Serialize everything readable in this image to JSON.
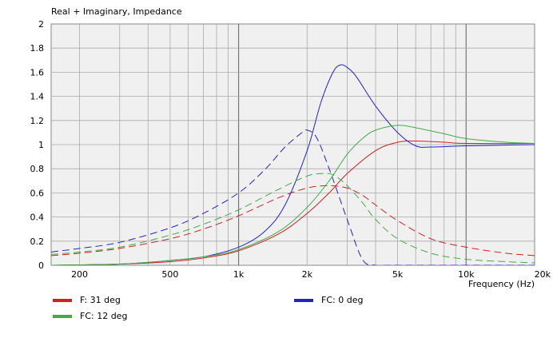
{
  "chart_data": {
    "type": "line",
    "title": "Real + Imaginary, Impedance",
    "xlabel": "Frequency  (Hz)",
    "ylabel": "",
    "xscale": "log",
    "xlim": [
      150,
      20000
    ],
    "ylim": [
      0,
      2
    ],
    "grid": true,
    "x_ticks": [
      {
        "value": 200,
        "label": "200"
      },
      {
        "value": 500,
        "label": "500"
      },
      {
        "value": 1000,
        "label": "1k"
      },
      {
        "value": 2000,
        "label": "2k"
      },
      {
        "value": 5000,
        "label": "5k"
      },
      {
        "value": 10000,
        "label": "10k"
      },
      {
        "value": 20000,
        "label": "20k"
      }
    ],
    "y_ticks": [
      {
        "value": 0,
        "label": "0"
      },
      {
        "value": 0.2,
        "label": "0.2"
      },
      {
        "value": 0.4,
        "label": "0.4"
      },
      {
        "value": 0.6,
        "label": "0.6"
      },
      {
        "value": 0.8,
        "label": "0.8"
      },
      {
        "value": 1,
        "label": "1"
      },
      {
        "value": 1.2,
        "label": "1.2"
      },
      {
        "value": 1.4,
        "label": "1.4"
      },
      {
        "value": 1.6,
        "label": "1.6"
      },
      {
        "value": 1.8,
        "label": "1.8"
      },
      {
        "value": 2,
        "label": "2"
      }
    ],
    "legend_placement": "bottom",
    "legend": [
      {
        "label": "F: 31 deg",
        "color": "#cc2222"
      },
      {
        "label": "FC: 0 deg",
        "color": "#2222cc"
      },
      {
        "label": "FC: 12 deg",
        "color": "#44aa44"
      }
    ],
    "series": [
      {
        "name": "F: 31 deg",
        "part": "real",
        "color": "#cc2222",
        "dash": "solid",
        "x": [
          150,
          300,
          500,
          700,
          1000,
          1500,
          2000,
          2500,
          3000,
          4000,
          5000,
          6000,
          8000,
          10000,
          20000
        ],
        "y": [
          0.0,
          0.01,
          0.03,
          0.06,
          0.12,
          0.26,
          0.43,
          0.6,
          0.76,
          0.95,
          1.02,
          1.03,
          1.02,
          1.01,
          1.01
        ]
      },
      {
        "name": "F: 31 deg",
        "part": "imaginary",
        "color": "#cc2222",
        "dash": "dashed",
        "x": [
          150,
          200,
          300,
          500,
          700,
          1000,
          1500,
          2000,
          2500,
          3000,
          3500,
          4000,
          5000,
          7000,
          10000,
          15000,
          20000
        ],
        "y": [
          0.08,
          0.1,
          0.14,
          0.22,
          0.3,
          0.41,
          0.56,
          0.64,
          0.66,
          0.64,
          0.58,
          0.5,
          0.37,
          0.22,
          0.15,
          0.1,
          0.08
        ]
      },
      {
        "name": "FC: 0 deg",
        "part": "real",
        "color": "#2222cc",
        "dash": "solid",
        "x": [
          150,
          300,
          500,
          700,
          1000,
          1300,
          1600,
          2000,
          2300,
          2600,
          2800,
          3000,
          3300,
          4000,
          5000,
          6000,
          7000,
          10000,
          20000
        ],
        "y": [
          0.0,
          0.01,
          0.04,
          0.07,
          0.15,
          0.28,
          0.5,
          0.95,
          1.35,
          1.6,
          1.66,
          1.64,
          1.56,
          1.32,
          1.1,
          0.99,
          0.98,
          0.99,
          1.0
        ]
      },
      {
        "name": "FC: 0 deg",
        "part": "imaginary",
        "color": "#2222cc",
        "dash": "dashed",
        "x": [
          150,
          200,
          300,
          500,
          700,
          1000,
          1300,
          1600,
          1900,
          2000,
          2200,
          2500,
          3000,
          3500,
          4000,
          5000,
          20000
        ],
        "y": [
          0.11,
          0.14,
          0.19,
          0.31,
          0.43,
          0.6,
          0.79,
          0.98,
          1.1,
          1.12,
          1.06,
          0.8,
          0.38,
          0.05,
          0.0,
          0.0,
          0.0
        ]
      },
      {
        "name": "FC: 12 deg",
        "part": "real",
        "color": "#44aa44",
        "dash": "solid",
        "x": [
          150,
          300,
          500,
          700,
          1000,
          1500,
          2000,
          2500,
          3000,
          3500,
          4000,
          5000,
          6000,
          8000,
          10000,
          15000,
          20000
        ],
        "y": [
          0.0,
          0.01,
          0.04,
          0.07,
          0.13,
          0.28,
          0.48,
          0.7,
          0.92,
          1.05,
          1.12,
          1.16,
          1.14,
          1.09,
          1.05,
          1.02,
          1.01
        ]
      },
      {
        "name": "FC: 12 deg",
        "part": "imaginary",
        "color": "#44aa44",
        "dash": "dashed",
        "x": [
          150,
          200,
          300,
          500,
          700,
          1000,
          1500,
          2000,
          2300,
          2600,
          3000,
          3500,
          4000,
          5000,
          7000,
          10000,
          15000,
          20000
        ],
        "y": [
          0.09,
          0.11,
          0.15,
          0.25,
          0.34,
          0.46,
          0.63,
          0.74,
          0.76,
          0.75,
          0.66,
          0.52,
          0.38,
          0.22,
          0.1,
          0.05,
          0.03,
          0.02
        ]
      }
    ]
  }
}
